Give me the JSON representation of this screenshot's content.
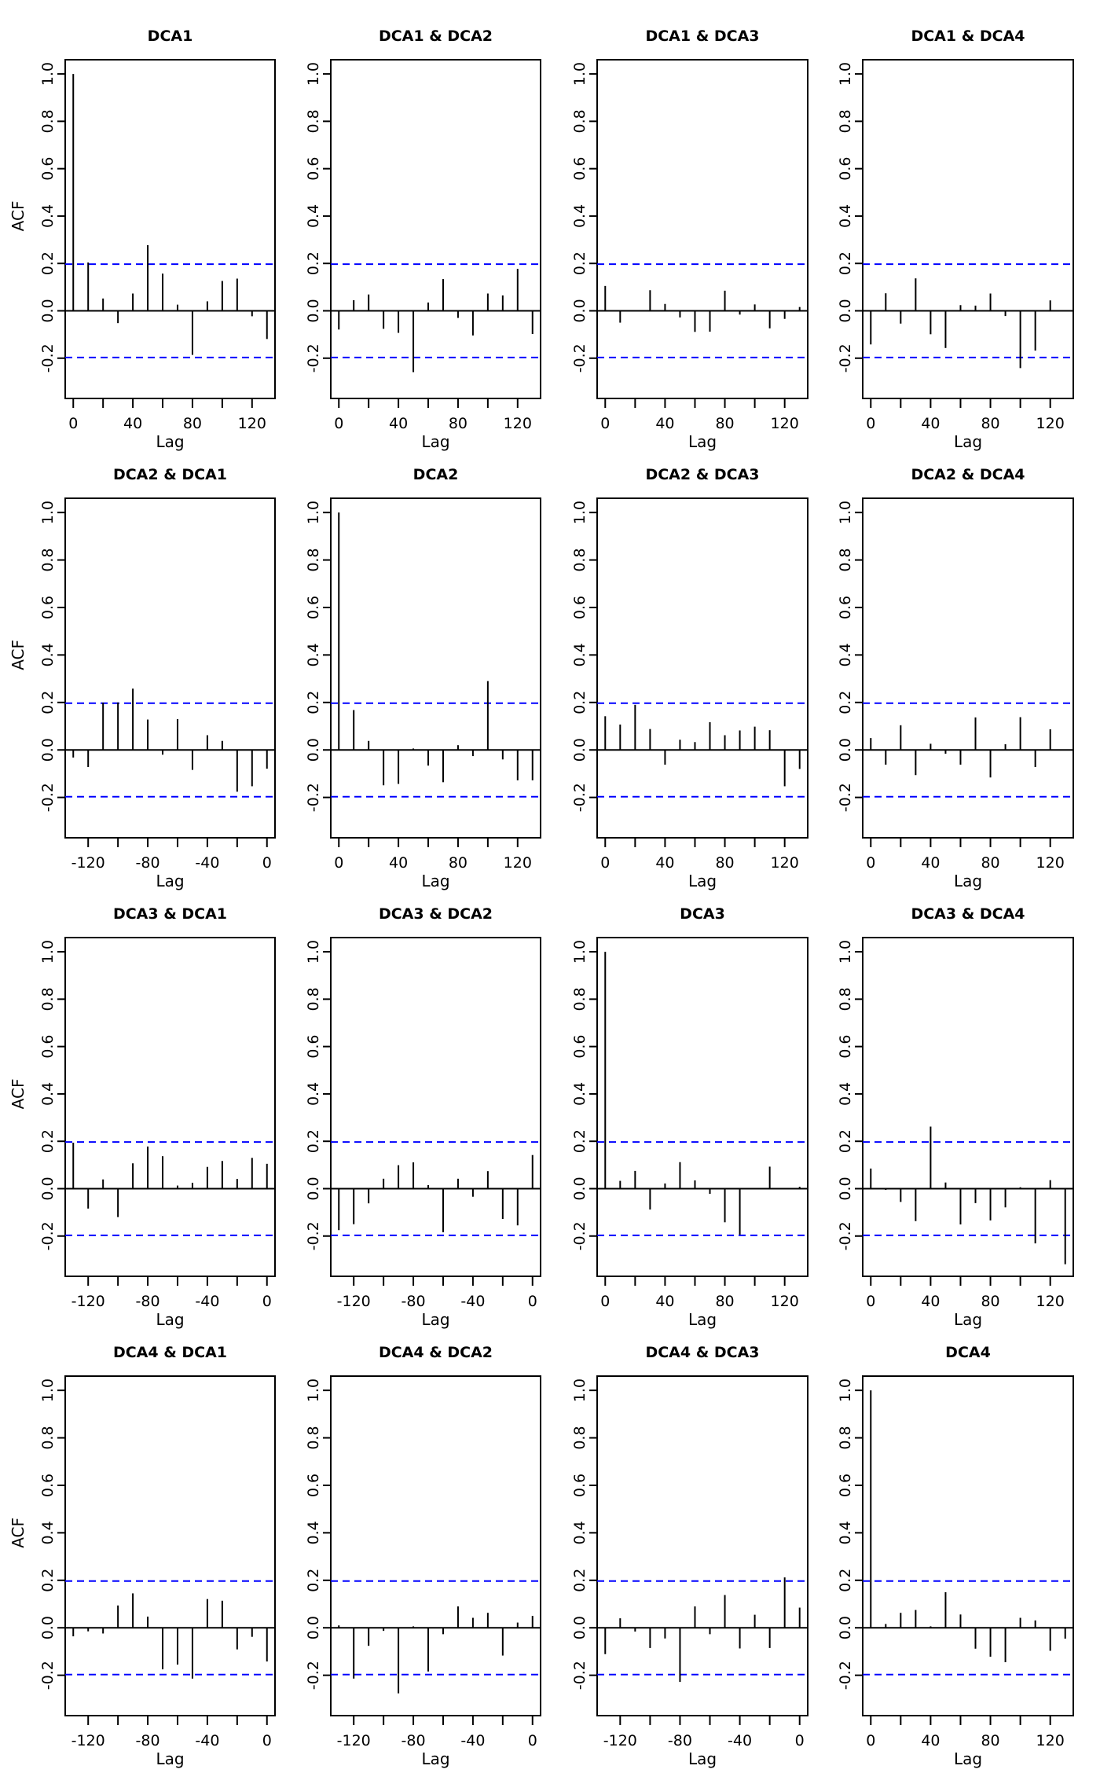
{
  "chart_data": [
    {
      "type": "bar",
      "title": "DCA1",
      "xlabel": "Lag",
      "ylabel": "ACF",
      "xlim": [
        -5.4,
        135.4
      ],
      "ylim": [
        -0.37,
        1.06
      ],
      "ci": 0.197,
      "xticks": [
        "0",
        "40",
        "80",
        "120"
      ],
      "yticks": [
        "-0.2",
        "0.0",
        "0.2",
        "0.4",
        "0.6",
        "0.8",
        "1.0"
      ],
      "lags": [
        0,
        10,
        20,
        30,
        40,
        50,
        60,
        70,
        80,
        90,
        100,
        110,
        120,
        130
      ],
      "values": [
        1.0,
        0.204,
        0.052,
        -0.052,
        0.073,
        0.277,
        0.157,
        0.026,
        -0.186,
        0.04,
        0.126,
        0.136,
        -0.023,
        -0.119
      ]
    },
    {
      "type": "bar",
      "title": "DCA1 & DCA2",
      "xlabel": "Lag",
      "xlim": [
        -5.4,
        135.4
      ],
      "ylim": [
        -0.37,
        1.06
      ],
      "ci": 0.197,
      "xticks": [
        "0",
        "40",
        "80",
        "120"
      ],
      "yticks": [
        "-0.2",
        "0.0",
        "0.2",
        "0.4",
        "0.6",
        "0.8",
        "1.0"
      ],
      "lags": [
        0,
        10,
        20,
        30,
        40,
        50,
        60,
        70,
        80,
        90,
        100,
        110,
        120,
        130
      ],
      "values": [
        -0.079,
        0.045,
        0.069,
        -0.076,
        -0.093,
        -0.259,
        0.035,
        0.134,
        -0.03,
        -0.104,
        0.073,
        0.065,
        0.177,
        -0.098
      ]
    },
    {
      "type": "bar",
      "title": "DCA1 & DCA3",
      "xlabel": "Lag",
      "xlim": [
        -5.4,
        135.4
      ],
      "ylim": [
        -0.37,
        1.06
      ],
      "ci": 0.197,
      "xticks": [
        "0",
        "40",
        "80",
        "120"
      ],
      "yticks": [
        "-0.2",
        "0.0",
        "0.2",
        "0.4",
        "0.6",
        "0.8",
        "1.0"
      ],
      "lags": [
        0,
        10,
        20,
        30,
        40,
        50,
        60,
        70,
        80,
        90,
        100,
        110,
        120,
        130
      ],
      "values": [
        0.105,
        -0.05,
        0.0,
        0.087,
        0.029,
        -0.028,
        -0.089,
        -0.088,
        0.085,
        -0.016,
        0.027,
        -0.074,
        -0.034,
        0.016
      ]
    },
    {
      "type": "bar",
      "title": "DCA1 & DCA4",
      "xlabel": "Lag",
      "xlim": [
        -5.4,
        135.4
      ],
      "ylim": [
        -0.37,
        1.06
      ],
      "ci": 0.197,
      "xticks": [
        "0",
        "40",
        "80",
        "120"
      ],
      "yticks": [
        "-0.2",
        "0.0",
        "0.2",
        "0.4",
        "0.6",
        "0.8",
        "1.0"
      ],
      "lags": [
        0,
        10,
        20,
        30,
        40,
        50,
        60,
        70,
        80,
        90,
        100,
        110,
        120,
        130
      ],
      "values": [
        -0.142,
        0.074,
        -0.054,
        0.137,
        -0.099,
        -0.157,
        0.024,
        0.022,
        0.073,
        -0.022,
        -0.242,
        -0.168,
        0.044,
        0.0
      ]
    },
    {
      "type": "bar",
      "title": "DCA2 & DCA1",
      "xlabel": "Lag",
      "ylabel": "ACF",
      "xlim": [
        -135.4,
        5.4
      ],
      "ylim": [
        -0.37,
        1.06
      ],
      "ci": 0.197,
      "xticks": [
        "-120",
        "-80",
        "-40",
        "0"
      ],
      "yticks": [
        "-0.2",
        "0.0",
        "0.2",
        "0.4",
        "0.6",
        "0.8",
        "1.0"
      ],
      "lags": [
        -130,
        -120,
        -110,
        -100,
        -90,
        -80,
        -70,
        -60,
        -50,
        -40,
        -30,
        -20,
        -10,
        0
      ],
      "values": [
        -0.032,
        -0.072,
        0.199,
        0.2,
        0.258,
        0.128,
        -0.02,
        0.13,
        -0.084,
        0.062,
        0.038,
        -0.176,
        -0.153,
        -0.079
      ]
    },
    {
      "type": "bar",
      "title": "DCA2",
      "xlabel": "Lag",
      "xlim": [
        -5.4,
        135.4
      ],
      "ylim": [
        -0.37,
        1.06
      ],
      "ci": 0.197,
      "xticks": [
        "0",
        "40",
        "80",
        "120"
      ],
      "yticks": [
        "-0.2",
        "0.0",
        "0.2",
        "0.4",
        "0.6",
        "0.8",
        "1.0"
      ],
      "lags": [
        0,
        10,
        20,
        30,
        40,
        50,
        60,
        70,
        80,
        90,
        100,
        110,
        120,
        130
      ],
      "values": [
        1.0,
        0.168,
        0.038,
        -0.149,
        -0.143,
        0.006,
        -0.066,
        -0.136,
        0.02,
        -0.026,
        0.29,
        -0.04,
        -0.128,
        -0.128
      ]
    },
    {
      "type": "bar",
      "title": "DCA2 & DCA3",
      "xlabel": "Lag",
      "xlim": [
        -5.4,
        135.4
      ],
      "ylim": [
        -0.37,
        1.06
      ],
      "ci": 0.197,
      "xticks": [
        "0",
        "40",
        "80",
        "120"
      ],
      "yticks": [
        "-0.2",
        "0.0",
        "0.2",
        "0.4",
        "0.6",
        "0.8",
        "1.0"
      ],
      "lags": [
        0,
        10,
        20,
        30,
        40,
        50,
        60,
        70,
        80,
        90,
        100,
        110,
        120,
        130
      ],
      "values": [
        0.142,
        0.107,
        0.19,
        0.088,
        -0.062,
        0.043,
        0.033,
        0.117,
        0.062,
        0.082,
        0.098,
        0.083,
        -0.153,
        -0.08
      ]
    },
    {
      "type": "bar",
      "title": "DCA2 & DCA4",
      "xlabel": "Lag",
      "xlim": [
        -5.4,
        135.4
      ],
      "ylim": [
        -0.37,
        1.06
      ],
      "ci": 0.197,
      "xticks": [
        "0",
        "40",
        "80",
        "120"
      ],
      "yticks": [
        "-0.2",
        "0.0",
        "0.2",
        "0.4",
        "0.6",
        "0.8",
        "1.0"
      ],
      "lags": [
        0,
        10,
        20,
        30,
        40,
        50,
        60,
        70,
        80,
        90,
        100,
        110,
        120,
        130
      ],
      "values": [
        0.05,
        -0.062,
        0.104,
        -0.106,
        0.026,
        -0.016,
        -0.062,
        0.137,
        -0.116,
        0.024,
        0.138,
        -0.072,
        0.087,
        0.0
      ]
    },
    {
      "type": "bar",
      "title": "DCA3 & DCA1",
      "xlabel": "Lag",
      "ylabel": "ACF",
      "xlim": [
        -135.4,
        5.4
      ],
      "ylim": [
        -0.37,
        1.06
      ],
      "ci": 0.197,
      "xticks": [
        "-120",
        "-80",
        "-40",
        "0"
      ],
      "yticks": [
        "-0.2",
        "0.0",
        "0.2",
        "0.4",
        "0.6",
        "0.8",
        "1.0"
      ],
      "lags": [
        -130,
        -120,
        -110,
        -100,
        -90,
        -80,
        -70,
        -60,
        -50,
        -40,
        -30,
        -20,
        -10,
        0
      ],
      "values": [
        0.194,
        -0.084,
        0.039,
        -0.12,
        0.107,
        0.178,
        0.137,
        0.013,
        0.025,
        0.092,
        0.117,
        0.041,
        0.13,
        0.105
      ]
    },
    {
      "type": "bar",
      "title": "DCA3 & DCA2",
      "xlabel": "Lag",
      "xlim": [
        -135.4,
        5.4
      ],
      "ylim": [
        -0.37,
        1.06
      ],
      "ci": 0.197,
      "xticks": [
        "-120",
        "-80",
        "-40",
        "0"
      ],
      "yticks": [
        "-0.2",
        "0.0",
        "0.2",
        "0.4",
        "0.6",
        "0.8",
        "1.0"
      ],
      "lags": [
        -130,
        -120,
        -110,
        -100,
        -90,
        -80,
        -70,
        -60,
        -50,
        -40,
        -30,
        -20,
        -10,
        0
      ],
      "values": [
        -0.175,
        -0.15,
        -0.062,
        0.042,
        0.099,
        0.111,
        0.015,
        -0.184,
        0.042,
        -0.034,
        0.074,
        -0.128,
        -0.155,
        0.142
      ]
    },
    {
      "type": "bar",
      "title": "DCA3",
      "xlabel": "Lag",
      "xlim": [
        -5.4,
        135.4
      ],
      "ylim": [
        -0.37,
        1.06
      ],
      "ci": 0.197,
      "xticks": [
        "0",
        "40",
        "80",
        "120"
      ],
      "yticks": [
        "-0.2",
        "0.0",
        "0.2",
        "0.4",
        "0.6",
        "0.8",
        "1.0"
      ],
      "lags": [
        0,
        10,
        20,
        30,
        40,
        50,
        60,
        70,
        80,
        90,
        100,
        110,
        120,
        130
      ],
      "values": [
        1.0,
        0.033,
        0.075,
        -0.088,
        0.022,
        0.112,
        0.035,
        -0.022,
        -0.142,
        -0.194,
        0.002,
        0.093,
        0.0,
        0.008
      ]
    },
    {
      "type": "bar",
      "title": "DCA3 & DCA4",
      "xlabel": "Lag",
      "xlim": [
        -5.4,
        135.4
      ],
      "ylim": [
        -0.37,
        1.06
      ],
      "ci": 0.197,
      "xticks": [
        "0",
        "40",
        "80",
        "120"
      ],
      "yticks": [
        "-0.2",
        "0.0",
        "0.2",
        "0.4",
        "0.6",
        "0.8",
        "1.0"
      ],
      "lags": [
        0,
        10,
        20,
        30,
        40,
        50,
        60,
        70,
        80,
        90,
        100,
        110,
        120,
        130
      ],
      "values": [
        0.085,
        -0.005,
        -0.056,
        -0.137,
        0.262,
        0.026,
        -0.151,
        -0.061,
        -0.134,
        -0.079,
        0.006,
        -0.231,
        0.036,
        -0.319
      ]
    },
    {
      "type": "bar",
      "title": "DCA4 & DCA1",
      "xlabel": "Lag",
      "ylabel": "ACF",
      "xlim": [
        -135.4,
        5.4
      ],
      "ylim": [
        -0.37,
        1.06
      ],
      "ci": 0.197,
      "xticks": [
        "-120",
        "-80",
        "-40",
        "0"
      ],
      "yticks": [
        "-0.2",
        "0.0",
        "0.2",
        "0.4",
        "0.6",
        "0.8",
        "1.0"
      ],
      "lags": [
        -130,
        -120,
        -110,
        -100,
        -90,
        -80,
        -70,
        -60,
        -50,
        -40,
        -30,
        -20,
        -10,
        0
      ],
      "values": [
        -0.036,
        -0.015,
        -0.024,
        0.094,
        0.145,
        0.047,
        -0.175,
        -0.155,
        -0.214,
        0.121,
        0.114,
        -0.091,
        -0.038,
        -0.142
      ]
    },
    {
      "type": "bar",
      "title": "DCA4 & DCA2",
      "xlabel": "Lag",
      "xlim": [
        -135.4,
        5.4
      ],
      "ylim": [
        -0.37,
        1.06
      ],
      "ci": 0.197,
      "xticks": [
        "-120",
        "-80",
        "-40",
        "0"
      ],
      "yticks": [
        "-0.2",
        "0.0",
        "0.2",
        "0.4",
        "0.6",
        "0.8",
        "1.0"
      ],
      "lags": [
        -130,
        -120,
        -110,
        -100,
        -90,
        -80,
        -70,
        -60,
        -50,
        -40,
        -30,
        -20,
        -10,
        0
      ],
      "values": [
        0.01,
        -0.214,
        -0.076,
        -0.013,
        -0.276,
        0.006,
        -0.184,
        -0.027,
        0.09,
        0.042,
        0.063,
        -0.117,
        0.022,
        0.05
      ]
    },
    {
      "type": "bar",
      "title": "DCA4 & DCA3",
      "xlabel": "Lag",
      "xlim": [
        -135.4,
        5.4
      ],
      "ylim": [
        -0.37,
        1.06
      ],
      "ci": 0.197,
      "xticks": [
        "-120",
        "-80",
        "-40",
        "0"
      ],
      "yticks": [
        "-0.2",
        "0.0",
        "0.2",
        "0.4",
        "0.6",
        "0.8",
        "1.0"
      ],
      "lags": [
        -130,
        -120,
        -110,
        -100,
        -90,
        -80,
        -70,
        -60,
        -50,
        -40,
        -30,
        -20,
        -10,
        0
      ],
      "values": [
        -0.111,
        0.04,
        -0.016,
        -0.085,
        -0.045,
        -0.228,
        0.09,
        -0.027,
        0.138,
        -0.087,
        0.055,
        -0.085,
        0.212,
        0.085
      ]
    },
    {
      "type": "bar",
      "title": "DCA4",
      "xlabel": "Lag",
      "xlim": [
        -5.4,
        135.4
      ],
      "ylim": [
        -0.37,
        1.06
      ],
      "ci": 0.197,
      "xticks": [
        "0",
        "40",
        "80",
        "120"
      ],
      "yticks": [
        "-0.2",
        "0.0",
        "0.2",
        "0.4",
        "0.6",
        "0.8",
        "1.0"
      ],
      "lags": [
        0,
        10,
        20,
        30,
        40,
        50,
        60,
        70,
        80,
        90,
        100,
        110,
        120,
        130
      ],
      "values": [
        1.0,
        0.016,
        0.063,
        0.075,
        0.006,
        0.15,
        0.056,
        -0.088,
        -0.122,
        -0.145,
        0.042,
        0.031,
        -0.097,
        -0.046
      ]
    }
  ],
  "colors": {
    "bars": "#000000",
    "confidence_band": "#0000ff",
    "axes": "#000000"
  }
}
